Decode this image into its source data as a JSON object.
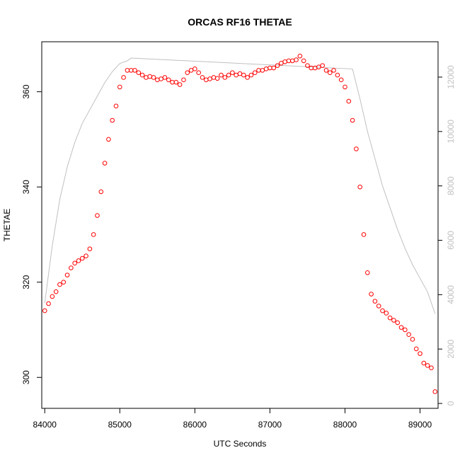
{
  "chart_data": {
    "type": "scatter",
    "title": "ORCAS RF16 THETAE",
    "xlabel": "UTC Seconds",
    "ylabel": "THETAE",
    "xlim": [
      83960,
      89240
    ],
    "ylim": [
      293.5,
      370.5
    ],
    "y2lim": [
      -180,
      13300
    ],
    "x_ticks": [
      84000,
      85000,
      86000,
      87000,
      88000,
      89000
    ],
    "y_ticks": [
      300,
      320,
      340,
      360
    ],
    "y2_ticks": [
      0,
      2000,
      4000,
      6000,
      8000,
      10000,
      12000
    ],
    "marker_color": "#ff0000",
    "secondary_color": "#c0c0c0",
    "series": [
      {
        "marker": "open-circle",
        "axis": "left",
        "x": [
          84000,
          84050,
          84100,
          84150,
          84200,
          84250,
          84300,
          84350,
          84400,
          84450,
          84500,
          84550,
          84600,
          84650,
          84700,
          84750,
          84800,
          84850,
          84900,
          84950,
          85000,
          85050,
          85100,
          85150,
          85200,
          85250,
          85300,
          85350,
          85400,
          85450,
          85500,
          85550,
          85600,
          85650,
          85700,
          85750,
          85800,
          85850,
          85900,
          85950,
          86000,
          86050,
          86100,
          86150,
          86200,
          86250,
          86300,
          86350,
          86400,
          86450,
          86500,
          86550,
          86600,
          86650,
          86700,
          86750,
          86800,
          86850,
          86900,
          86950,
          87000,
          87050,
          87100,
          87150,
          87200,
          87250,
          87300,
          87350,
          87400,
          87450,
          87500,
          87550,
          87600,
          87650,
          87700,
          87750,
          87800,
          87850,
          87900,
          87950,
          88000,
          88050,
          88100,
          88150,
          88200,
          88250,
          88300,
          88350,
          88400,
          88450,
          88500,
          88550,
          88600,
          88650,
          88700,
          88750,
          88800,
          88850,
          88900,
          88950,
          89000,
          89050,
          89100,
          89150,
          89200
        ],
        "y": [
          314,
          315.5,
          317,
          318,
          319.5,
          320,
          321.5,
          323,
          324,
          324.5,
          325,
          325.5,
          327,
          330,
          334,
          339,
          345,
          350,
          354,
          357,
          361,
          363,
          364.5,
          364.5,
          364.5,
          364,
          363.5,
          363,
          363.2,
          363,
          362.5,
          362.7,
          363,
          362.5,
          362,
          362,
          361.5,
          362.5,
          364,
          364.5,
          364.8,
          364,
          363,
          362.5,
          362.7,
          363,
          362.8,
          363.5,
          363,
          363.5,
          364,
          363.5,
          363.8,
          363.5,
          363,
          363.5,
          364,
          364.5,
          364.5,
          364.8,
          365,
          365,
          365.5,
          366,
          366.3,
          366.5,
          366.5,
          366.7,
          367.5,
          366.5,
          365.5,
          365,
          365,
          365.2,
          365.5,
          364.5,
          364,
          364.5,
          363.5,
          362.5,
          361,
          358,
          354,
          348,
          340,
          330,
          322,
          317.5,
          316,
          315,
          314,
          313.5,
          312.5,
          312,
          311.5,
          310.5,
          310,
          309,
          308,
          306,
          305,
          303,
          302.5,
          302,
          297
        ]
      },
      {
        "marker": "line",
        "axis": "right",
        "x": [
          84000,
          84100,
          84200,
          84300,
          84400,
          84500,
          84600,
          84700,
          84800,
          84900,
          85000,
          85100,
          85150,
          88100,
          88200,
          88300,
          88400,
          88500,
          88600,
          88700,
          88800,
          88900,
          89000,
          89100,
          89200
        ],
        "y": [
          3700,
          5800,
          7500,
          8700,
          9600,
          10300,
          10800,
          11300,
          11800,
          12200,
          12500,
          12600,
          12700,
          12300,
          11200,
          10000,
          9000,
          8000,
          7200,
          6400,
          5700,
          5100,
          4600,
          4100,
          3300
        ]
      }
    ]
  }
}
